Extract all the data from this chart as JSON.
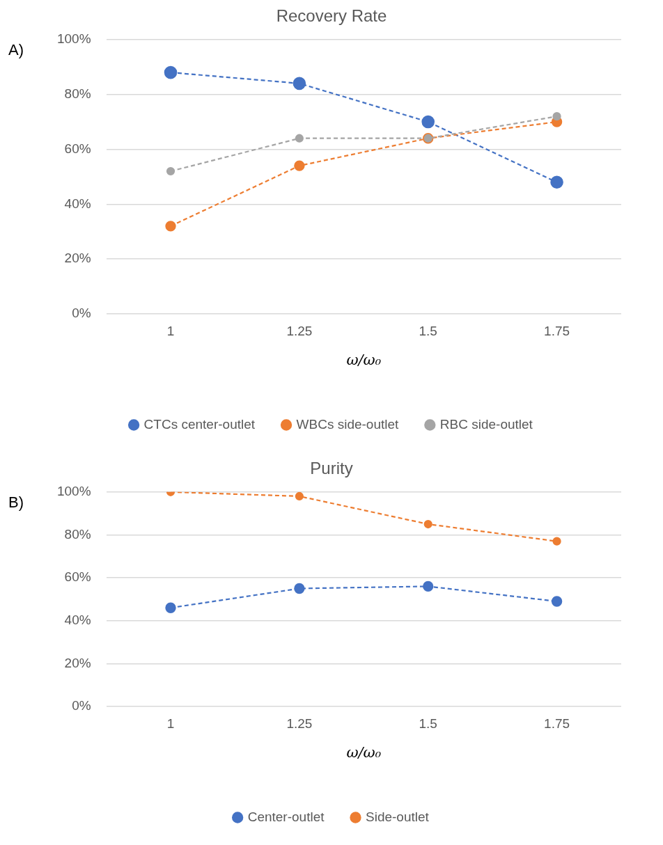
{
  "chart_data": [
    {
      "type": "line",
      "title": "Recovery Rate",
      "xlabel": "ω/ω₀",
      "annotations": [
        "A)"
      ],
      "categories": [
        "1",
        "1.25",
        "1.5",
        "1.75"
      ],
      "series": [
        {
          "name": "CTCs center-outlet",
          "color": "#4472c4",
          "values": [
            88,
            84,
            70,
            48
          ]
        },
        {
          "name": "WBCs side-outlet",
          "color": "#ed7d31",
          "values": [
            32,
            54,
            64,
            70
          ]
        },
        {
          "name": "RBC side-outlet",
          "color": "#a5a5a5",
          "values": [
            52,
            64,
            64,
            72
          ]
        }
      ],
      "ylim": [
        0,
        100
      ],
      "yticks": [
        {
          "value": 0,
          "label": "0%"
        },
        {
          "value": 20,
          "label": "20%"
        },
        {
          "value": 40,
          "label": "40%"
        },
        {
          "value": 60,
          "label": "60%"
        },
        {
          "value": 80,
          "label": "80%"
        },
        {
          "value": 100,
          "label": "100%"
        }
      ],
      "grid": "y",
      "legend": "bottom",
      "marker": "circle",
      "line_style": "dashed"
    },
    {
      "type": "line",
      "title": "Purity",
      "xlabel": "ω/ω₀",
      "annotations": [
        "B)"
      ],
      "categories": [
        "1",
        "1.25",
        "1.5",
        "1.75"
      ],
      "series": [
        {
          "name": "Center-outlet",
          "color": "#4472c4",
          "values": [
            46,
            55,
            56,
            49
          ]
        },
        {
          "name": "Side-outlet",
          "color": "#ed7d31",
          "values": [
            100,
            98,
            85,
            77
          ]
        }
      ],
      "ylim": [
        0,
        100
      ],
      "yticks": [
        {
          "value": 0,
          "label": "0%"
        },
        {
          "value": 20,
          "label": "20%"
        },
        {
          "value": 40,
          "label": "40%"
        },
        {
          "value": 60,
          "label": "60%"
        },
        {
          "value": 80,
          "label": "80%"
        },
        {
          "value": 100,
          "label": "100%"
        }
      ],
      "grid": "y",
      "legend": "bottom",
      "marker": "circle",
      "line_style": "dashed"
    }
  ]
}
